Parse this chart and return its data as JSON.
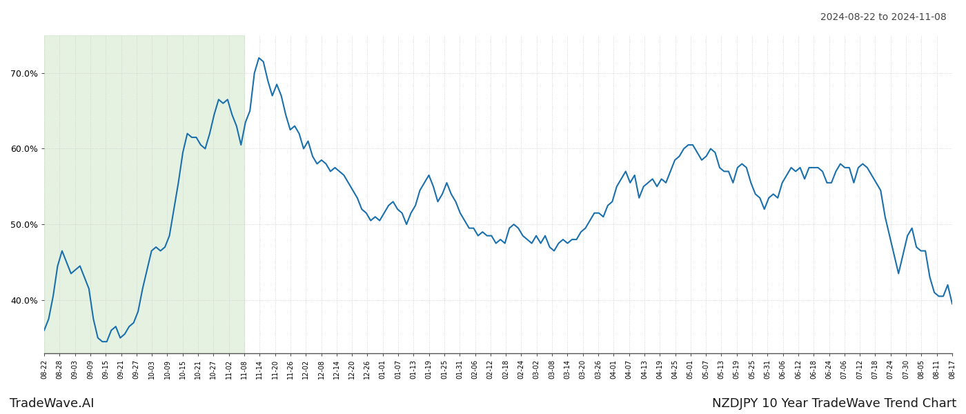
{
  "title_top_right": "2024-08-22 to 2024-11-08",
  "title_bottom_left": "TradeWave.AI",
  "title_bottom_right": "NZDJPY 10 Year TradeWave Trend Chart",
  "line_color": "#1a6fad",
  "line_width": 1.5,
  "shaded_region_color": "#d4e8ce",
  "shaded_region_alpha": 0.6,
  "shaded_x_start_label": "08-22",
  "shaded_x_end_label": "11-08",
  "ylim": [
    33,
    75
  ],
  "yticks": [
    40.0,
    50.0,
    60.0,
    70.0
  ],
  "background_color": "#ffffff",
  "grid_color": "#cccccc",
  "x_labels": [
    "08-22",
    "08-28",
    "09-03",
    "09-09",
    "09-15",
    "09-21",
    "09-27",
    "10-03",
    "10-09",
    "10-15",
    "10-21",
    "10-27",
    "11-02",
    "11-08",
    "11-14",
    "11-20",
    "11-26",
    "12-02",
    "12-08",
    "12-14",
    "12-20",
    "12-26",
    "01-01",
    "01-07",
    "01-13",
    "01-19",
    "01-25",
    "01-31",
    "02-06",
    "02-12",
    "02-18",
    "02-24",
    "03-02",
    "03-08",
    "03-14",
    "03-20",
    "03-26",
    "04-01",
    "04-07",
    "04-13",
    "04-19",
    "04-25",
    "05-01",
    "05-07",
    "05-13",
    "05-19",
    "05-25",
    "05-31",
    "06-06",
    "06-12",
    "06-18",
    "06-24",
    "07-06",
    "07-12",
    "07-18",
    "07-24",
    "07-30",
    "08-05",
    "08-11",
    "08-17"
  ],
  "y_values": [
    36.0,
    37.5,
    40.5,
    44.5,
    46.5,
    45.0,
    43.5,
    44.0,
    44.5,
    43.0,
    41.5,
    37.5,
    35.0,
    34.5,
    34.5,
    36.0,
    36.5,
    35.0,
    35.5,
    36.5,
    37.0,
    38.5,
    41.5,
    44.0,
    46.5,
    47.0,
    46.5,
    47.0,
    48.5,
    52.0,
    55.5,
    59.5,
    62.0,
    61.5,
    61.5,
    60.5,
    60.0,
    62.0,
    64.5,
    66.5,
    66.0,
    66.5,
    64.5,
    63.0,
    60.5,
    63.5,
    65.0,
    70.0,
    72.0,
    71.5,
    69.0,
    67.0,
    68.5,
    67.0,
    64.5,
    62.5,
    63.0,
    62.0,
    60.0,
    61.0,
    59.0,
    58.0,
    58.5,
    58.0,
    57.0,
    57.5,
    57.0,
    56.5,
    55.5,
    54.5,
    53.5,
    52.0,
    51.5,
    50.5,
    51.0,
    50.5,
    51.5,
    52.5,
    53.0,
    52.0,
    51.5,
    50.0,
    51.5,
    52.5,
    54.5,
    55.5,
    56.5,
    55.0,
    53.0,
    54.0,
    55.5,
    54.0,
    53.0,
    51.5,
    50.5,
    49.5,
    49.5,
    48.5,
    49.0,
    48.5,
    48.5,
    47.5,
    48.0,
    47.5,
    49.5,
    50.0,
    49.5,
    48.5,
    48.0,
    47.5,
    48.5,
    47.5,
    48.5,
    47.0,
    46.5,
    47.5,
    48.0,
    47.5,
    48.0,
    48.0,
    49.0,
    49.5,
    50.5,
    51.5,
    51.5,
    51.0,
    52.5,
    53.0,
    55.0,
    56.0,
    57.0,
    55.5,
    56.5,
    53.5,
    55.0,
    55.5,
    56.0,
    55.0,
    56.0,
    55.5,
    57.0,
    58.5,
    59.0,
    60.0,
    60.5,
    60.5,
    59.5,
    58.5,
    59.0,
    60.0,
    59.5,
    57.5,
    57.0,
    57.0,
    55.5,
    57.5,
    58.0,
    57.5,
    55.5,
    54.0,
    53.5,
    52.0,
    53.5,
    54.0,
    53.5,
    55.5,
    56.5,
    57.5,
    57.0,
    57.5,
    56.0,
    57.5,
    57.5,
    57.5,
    57.0,
    55.5,
    55.5,
    57.0,
    58.0,
    57.5,
    57.5,
    55.5,
    57.5,
    58.0,
    57.5,
    56.5,
    55.5,
    54.5,
    51.0,
    48.5,
    46.0,
    43.5,
    46.0,
    48.5,
    49.5,
    47.0,
    46.5,
    46.5,
    43.0,
    41.0,
    40.5,
    40.5,
    42.0,
    39.5
  ]
}
